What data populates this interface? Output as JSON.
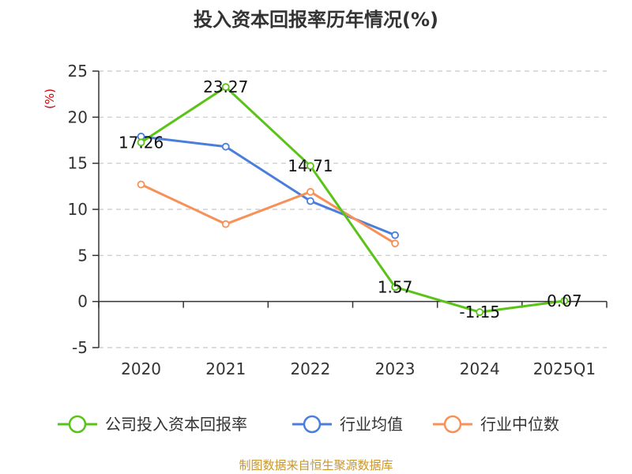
{
  "chart_data": {
    "type": "line",
    "title": "投入资本回报率历年情况(%)",
    "unit_label": "(%)",
    "categories": [
      "2020",
      "2021",
      "2022",
      "2023",
      "2024",
      "2025Q1"
    ],
    "ylim": [
      -5,
      25
    ],
    "yticks": [
      25,
      20,
      15,
      10,
      5,
      0,
      -5
    ],
    "grid": true,
    "legend_position": "bottom",
    "series": [
      {
        "name": "公司投入资本回报率",
        "color": "#5ac318",
        "values": [
          17.26,
          23.27,
          14.71,
          1.57,
          -1.15,
          0.07
        ],
        "labeled": true
      },
      {
        "name": "行业均值",
        "color": "#4a7edb",
        "values": [
          17.9,
          16.8,
          10.9,
          7.2,
          null,
          null
        ],
        "labeled": false
      },
      {
        "name": "行业中位数",
        "color": "#f79158",
        "values": [
          12.7,
          8.4,
          11.9,
          6.3,
          null,
          null
        ],
        "labeled": false
      }
    ],
    "source": "制图数据来自恒生聚源数据库"
  }
}
